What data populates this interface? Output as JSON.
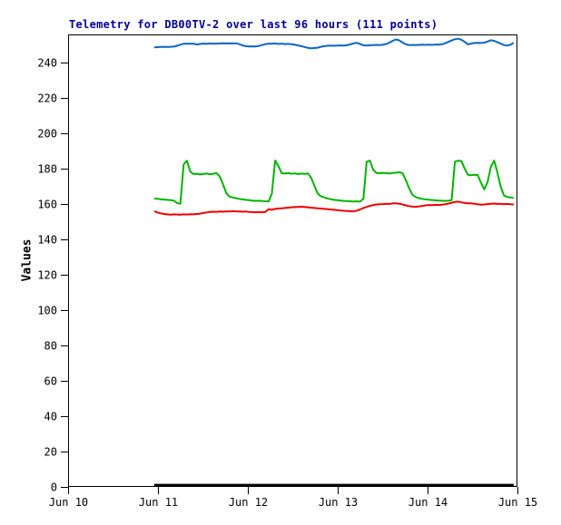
{
  "chart_data": {
    "type": "line",
    "title": "Telemetry for DB00TV-2 over last 96 hours (111 points)",
    "title_color": "#000099",
    "ylabel": "Values",
    "x_tick_labels": [
      "Jun 10",
      "Jun 11",
      "Jun 12",
      "Jun 13",
      "Jun 14",
      "Jun 15"
    ],
    "y_ticks": [
      0,
      20,
      40,
      60,
      80,
      100,
      120,
      140,
      160,
      180,
      200,
      220,
      240
    ],
    "ylim": [
      0,
      256
    ],
    "xlim_days": [
      0,
      5
    ],
    "grid": false,
    "legend_position": "none",
    "points_count": 111,
    "span_hours": 96,
    "x_start_offset_hours_from_jun11": -1,
    "series": [
      {
        "name": "blue",
        "color": "#0a64c8",
        "stroke_width": 2,
        "values": [
          248.7,
          248.8,
          248.9,
          249.0,
          248.9,
          249.0,
          249.1,
          249.6,
          250.2,
          250.7,
          250.8,
          250.7,
          250.8,
          250.3,
          250.6,
          250.8,
          250.7,
          250.9,
          250.7,
          250.8,
          250.9,
          251.0,
          250.9,
          251.0,
          250.9,
          251.0,
          250.5,
          249.8,
          249.4,
          249.2,
          249.3,
          249.2,
          249.5,
          250.0,
          250.5,
          250.8,
          250.7,
          250.9,
          250.6,
          250.8,
          250.5,
          250.7,
          250.4,
          250.2,
          249.8,
          249.4,
          248.9,
          248.4,
          248.2,
          248.3,
          248.5,
          249.0,
          249.4,
          249.6,
          249.7,
          249.6,
          249.7,
          249.8,
          249.7,
          249.9,
          250.4,
          250.9,
          251.3,
          250.6,
          249.9,
          249.7,
          249.9,
          250.0,
          250.1,
          250.0,
          250.2,
          250.6,
          251.4,
          252.4,
          253.2,
          252.6,
          251.4,
          250.4,
          250.0,
          250.1,
          250.0,
          250.1,
          250.2,
          250.1,
          250.2,
          250.1,
          250.3,
          250.2,
          250.4,
          251.0,
          251.8,
          252.6,
          253.3,
          253.6,
          253.0,
          251.8,
          250.4,
          250.8,
          251.2,
          251.3,
          251.2,
          251.4,
          252.0,
          252.7,
          252.4,
          251.6,
          250.8,
          250.0,
          249.7,
          250.2,
          251.2
        ]
      },
      {
        "name": "green",
        "color": "#00b400",
        "stroke_width": 2,
        "values": [
          163.2,
          163.0,
          162.8,
          162.6,
          162.4,
          162.2,
          162.0,
          160.6,
          160.2,
          182.5,
          184.6,
          178.5,
          177.0,
          177.2,
          176.8,
          177.0,
          177.3,
          176.9,
          177.1,
          177.6,
          175.8,
          171.5,
          166.5,
          164.3,
          163.8,
          163.4,
          163.0,
          162.7,
          162.4,
          162.2,
          162.0,
          161.8,
          161.9,
          161.7,
          161.6,
          161.5,
          166.0,
          184.7,
          181.5,
          177.5,
          177.3,
          177.6,
          177.2,
          177.4,
          177.0,
          177.3,
          177.1,
          177.4,
          175.0,
          170.5,
          166.0,
          164.5,
          163.8,
          163.2,
          162.8,
          162.4,
          162.2,
          162.0,
          161.8,
          161.7,
          161.6,
          161.5,
          161.6,
          161.4,
          163.0,
          184.0,
          184.6,
          179.5,
          177.6,
          177.4,
          177.7,
          177.5,
          177.3,
          177.6,
          177.8,
          178.0,
          177.5,
          173.5,
          169.0,
          165.3,
          164.0,
          163.4,
          163.0,
          162.7,
          162.5,
          162.3,
          162.1,
          162.0,
          161.9,
          161.8,
          161.9,
          162.2,
          184.0,
          184.6,
          184.4,
          180.0,
          176.6,
          176.4,
          176.6,
          176.5,
          172.0,
          168.3,
          172.5,
          181.0,
          184.6,
          178.0,
          170.0,
          165.0,
          164.0,
          163.8,
          163.5
        ]
      },
      {
        "name": "red",
        "color": "#ee0000",
        "stroke_width": 2,
        "values": [
          156.0,
          155.3,
          154.8,
          154.4,
          154.2,
          154.0,
          154.2,
          154.1,
          154.0,
          154.2,
          154.1,
          154.3,
          154.2,
          154.4,
          154.6,
          155.0,
          155.3,
          155.6,
          155.7,
          155.6,
          155.8,
          155.7,
          155.9,
          155.8,
          156.0,
          155.9,
          155.8,
          155.7,
          155.8,
          155.6,
          155.5,
          155.4,
          155.5,
          155.4,
          155.6,
          157.2,
          156.8,
          157.3,
          157.5,
          157.6,
          157.8,
          158.0,
          158.2,
          158.3,
          158.4,
          158.5,
          158.4,
          158.2,
          158.0,
          157.8,
          157.6,
          157.5,
          157.3,
          157.2,
          157.0,
          156.8,
          156.6,
          156.4,
          156.2,
          156.1,
          156.0,
          155.9,
          156.3,
          157.0,
          157.8,
          158.4,
          159.0,
          159.5,
          159.8,
          159.9,
          160.0,
          160.2,
          160.1,
          160.4,
          160.5,
          160.2,
          159.8,
          159.3,
          158.9,
          158.6,
          158.5,
          158.7,
          159.0,
          159.3,
          159.5,
          159.4,
          159.6,
          159.5,
          159.7,
          159.9,
          160.3,
          160.8,
          161.2,
          161.4,
          161.0,
          160.7,
          160.5,
          160.4,
          160.2,
          159.9,
          159.7,
          159.8,
          160.0,
          160.2,
          160.3,
          160.1,
          160.2,
          160.0,
          160.1,
          159.9,
          159.8
        ]
      },
      {
        "name": "black-baseline",
        "color": "#000000",
        "stroke_width": 3,
        "constant": 1,
        "values": []
      }
    ]
  }
}
